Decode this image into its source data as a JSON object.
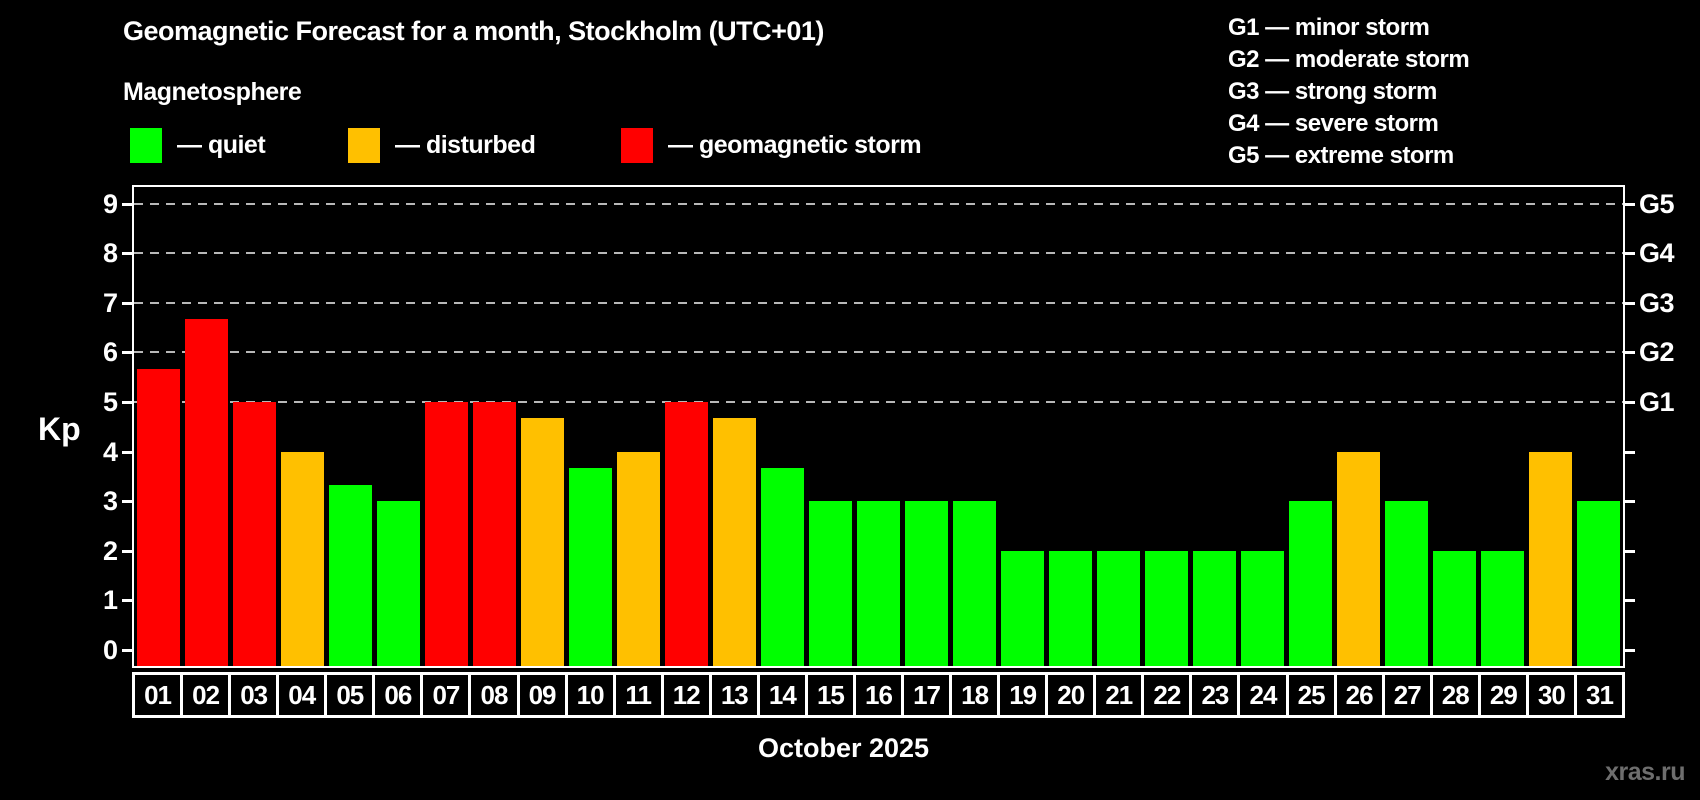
{
  "title": "Geomagnetic Forecast for a month, Stockholm (UTC+01)",
  "subtitle": "Magnetosphere",
  "legend": {
    "items": [
      {
        "label": "— quiet",
        "status": "quiet",
        "color": "#00ff00"
      },
      {
        "label": "— disturbed",
        "status": "disturbed",
        "color": "#ffc000"
      },
      {
        "label": "— geomagnetic storm",
        "status": "storm",
        "color": "#ff0000"
      }
    ]
  },
  "g_legend": {
    "items": [
      {
        "label": "G1 — minor storm"
      },
      {
        "label": "G2 — moderate storm"
      },
      {
        "label": "G3 — strong storm"
      },
      {
        "label": "G4 — severe storm"
      },
      {
        "label": "G5 — extreme storm"
      }
    ]
  },
  "axis": {
    "y_label": "Kp",
    "y_ticks": [
      0,
      1,
      2,
      3,
      4,
      5,
      6,
      7,
      8,
      9
    ],
    "right_ticks": [
      0,
      1,
      2,
      3,
      4,
      5,
      6,
      7,
      8,
      9
    ],
    "g_labels": [
      {
        "label": "G1",
        "kp": 5
      },
      {
        "label": "G2",
        "kp": 6
      },
      {
        "label": "G3",
        "kp": 7
      },
      {
        "label": "G4",
        "kp": 8
      },
      {
        "label": "G5",
        "kp": 9
      }
    ]
  },
  "x_axis": {
    "month_label": "October 2025"
  },
  "watermark": "xras.ru",
  "chart_data": {
    "type": "bar",
    "title": "Geomagnetic Forecast for a month, Stockholm (UTC+01)",
    "xlabel": "October 2025",
    "ylabel": "Kp",
    "ylim": [
      0,
      9.7
    ],
    "grid_kp": [
      5,
      6,
      7,
      8,
      9
    ],
    "legend_position": "top",
    "categories": [
      "01",
      "02",
      "03",
      "04",
      "05",
      "06",
      "07",
      "08",
      "09",
      "10",
      "11",
      "12",
      "13",
      "14",
      "15",
      "16",
      "17",
      "18",
      "19",
      "20",
      "21",
      "22",
      "23",
      "24",
      "25",
      "26",
      "27",
      "28",
      "29",
      "30",
      "31"
    ],
    "values": [
      5.67,
      6.67,
      5,
      4,
      3.33,
      3,
      5,
      5,
      4.67,
      3.67,
      4,
      5,
      4.67,
      3.67,
      3,
      3,
      3,
      3,
      2,
      2,
      2,
      2,
      2,
      2,
      3,
      4,
      3,
      2,
      2,
      4,
      3
    ],
    "statuses": [
      "storm",
      "storm",
      "storm",
      "disturbed",
      "quiet",
      "quiet",
      "storm",
      "storm",
      "disturbed",
      "quiet",
      "disturbed",
      "storm",
      "disturbed",
      "quiet",
      "quiet",
      "quiet",
      "quiet",
      "quiet",
      "quiet",
      "quiet",
      "quiet",
      "quiet",
      "quiet",
      "quiet",
      "quiet",
      "disturbed",
      "quiet",
      "quiet",
      "quiet",
      "disturbed",
      "quiet"
    ]
  }
}
